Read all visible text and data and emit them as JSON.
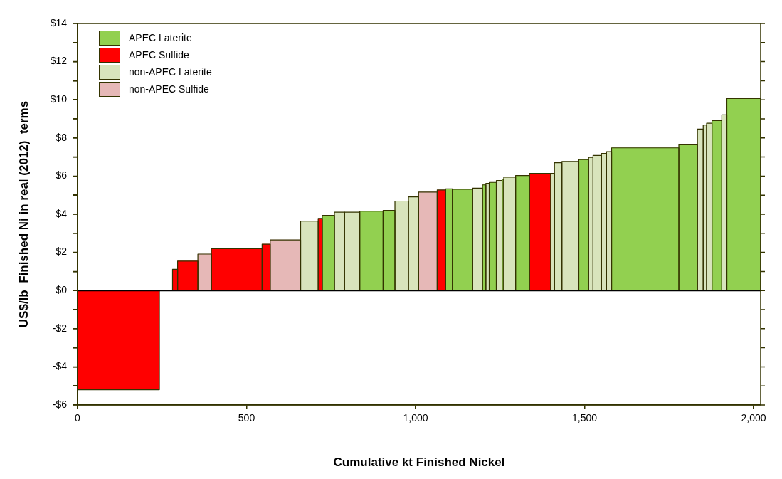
{
  "chart_data": {
    "type": "histogram",
    "xlabel": "Cumulative kt Finished Nickel",
    "ylabel": "US$/lb  Finished Ni in real (2012)  terms",
    "bins": [
      0,
      242,
      281,
      296,
      356,
      396,
      546,
      570,
      660,
      712,
      724,
      760,
      790,
      835,
      904,
      939,
      979,
      1009,
      1064,
      1089,
      1109,
      1169,
      1198,
      1208,
      1218,
      1239,
      1256,
      1261,
      1296,
      1337,
      1400,
      1411,
      1433,
      1483,
      1512,
      1525,
      1550,
      1565,
      1580,
      1779,
      1834,
      1851,
      1861,
      1877,
      1906,
      1921,
      2021
    ],
    "series": [
      {
        "name": "APEC Laterite",
        "color": "#92d050",
        "values": [
          null,
          null,
          null,
          null,
          null,
          null,
          null,
          null,
          null,
          null,
          3.94,
          null,
          null,
          4.16,
          4.2,
          null,
          null,
          null,
          null,
          5.33,
          5.31,
          null,
          5.54,
          null,
          5.67,
          null,
          5.84,
          null,
          6.03,
          null,
          null,
          null,
          null,
          6.87,
          null,
          null,
          null,
          null,
          7.48,
          7.64,
          null,
          null,
          null,
          8.91,
          null,
          10.07
        ]
      },
      {
        "name": "APEC Sulfide",
        "color": "#ff0000",
        "values": [
          -5.2,
          null,
          1.11,
          1.54,
          null,
          2.19,
          2.43,
          null,
          null,
          3.78,
          null,
          null,
          null,
          null,
          null,
          null,
          null,
          null,
          5.27,
          null,
          null,
          null,
          null,
          null,
          null,
          null,
          null,
          null,
          null,
          6.14,
          null,
          null,
          null,
          null,
          null,
          null,
          null,
          null,
          null,
          null,
          null,
          null,
          null,
          null,
          null,
          null
        ]
      },
      {
        "name": "non-APEC Laterite",
        "color": "#d8e4bc",
        "values": [
          null,
          null,
          null,
          null,
          null,
          null,
          null,
          null,
          3.64,
          null,
          null,
          4.11,
          4.11,
          null,
          null,
          4.69,
          4.91,
          null,
          null,
          null,
          null,
          5.37,
          null,
          5.62,
          null,
          5.77,
          null,
          5.94,
          null,
          null,
          6.14,
          6.7,
          6.77,
          null,
          6.98,
          7.08,
          7.19,
          7.28,
          null,
          null,
          8.46,
          8.68,
          8.77,
          null,
          9.21,
          null
        ]
      },
      {
        "name": "non-APEC Sulfide",
        "color": "#e6b8b7",
        "values": [
          null,
          null,
          null,
          null,
          1.91,
          null,
          null,
          2.65,
          null,
          null,
          null,
          null,
          null,
          null,
          null,
          null,
          null,
          5.16,
          null,
          null,
          null,
          null,
          null,
          null,
          null,
          null,
          null,
          null,
          null,
          null,
          null,
          null,
          null,
          null,
          null,
          null,
          null,
          null,
          null,
          null,
          null,
          null,
          null,
          null,
          null,
          null
        ]
      }
    ],
    "xlim": [
      0,
      2021
    ],
    "xticks": [
      0,
      500,
      {
        "value": 1000,
        "label": "1,000"
      },
      {
        "value": 1500,
        "label": "1,500"
      },
      {
        "value": 2000,
        "label": "2,000"
      }
    ],
    "ylim": [
      -6,
      14
    ],
    "yticks": [
      {
        "value": -6,
        "label": "-$6"
      },
      {
        "value": -5,
        "label": null
      },
      {
        "value": -4,
        "label": "-$4"
      },
      {
        "value": -3,
        "label": null
      },
      {
        "value": -2,
        "label": "-$2"
      },
      {
        "value": -1,
        "label": null
      },
      {
        "value": 0,
        "label": "$0"
      },
      {
        "value": 1,
        "label": null
      },
      {
        "value": 2,
        "label": "$2"
      },
      {
        "value": 3,
        "label": null
      },
      {
        "value": 4,
        "label": "$4"
      },
      {
        "value": 5,
        "label": null
      },
      {
        "value": 6,
        "label": "$6"
      },
      {
        "value": 7,
        "label": null
      },
      {
        "value": 8,
        "label": "$8"
      },
      {
        "value": 9,
        "label": null
      },
      {
        "value": 10,
        "label": "$10"
      },
      {
        "value": 11,
        "label": null
      },
      {
        "value": 12,
        "label": "$12"
      },
      {
        "value": 13,
        "label": null
      },
      {
        "value": 14,
        "label": "$14"
      }
    ],
    "ref_lines": [
      {
        "axis": "y",
        "value": 0,
        "color": "#000000"
      }
    ],
    "grid": false,
    "legend": "top left"
  }
}
